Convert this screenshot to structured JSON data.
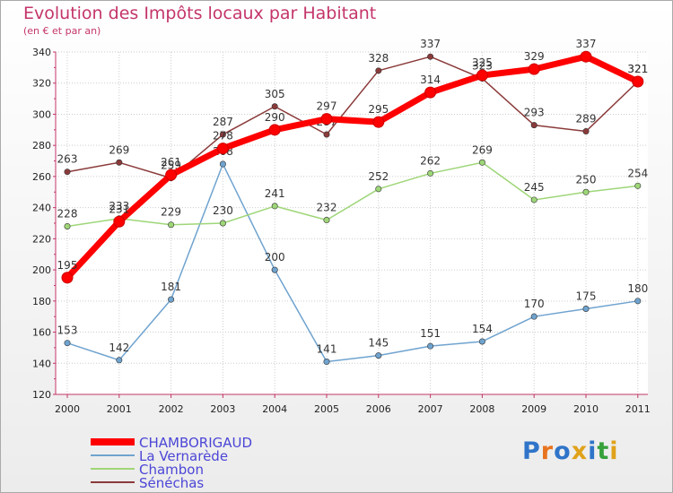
{
  "chart_data": {
    "type": "line",
    "title": "Evolution des Impôts locaux par Habitant",
    "subtitle": "(en € et par an)",
    "categories": [
      "2000",
      "2001",
      "2002",
      "2003",
      "2004",
      "2005",
      "2006",
      "2007",
      "2008",
      "2009",
      "2010",
      "2011"
    ],
    "ylim": [
      120,
      340
    ],
    "yticks": [
      120,
      140,
      160,
      180,
      200,
      220,
      240,
      260,
      280,
      300,
      320,
      340
    ],
    "grid": true,
    "legend_position": "bottom-left",
    "series": [
      {
        "name": "CHAMBORIGAUD",
        "color": "#ff0000",
        "values": [
          195,
          231,
          261,
          278,
          290,
          297,
          295,
          314,
          325,
          329,
          337,
          321
        ]
      },
      {
        "name": "La Vernarède",
        "color": "#6fa3cf",
        "values": [
          153,
          142,
          181,
          268,
          200,
          141,
          145,
          151,
          154,
          170,
          175,
          180
        ]
      },
      {
        "name": "Chambon",
        "color": "#9ed678",
        "values": [
          228,
          233,
          229,
          230,
          241,
          232,
          252,
          262,
          269,
          245,
          250,
          254
        ]
      },
      {
        "name": "Sénéchas",
        "color": "#8b3a3a",
        "values": [
          263,
          269,
          259,
          287,
          305,
          287,
          328,
          337,
          323,
          293,
          289,
          321
        ]
      }
    ]
  },
  "logo": {
    "letters": [
      "P",
      "r",
      "o",
      "x",
      "i",
      "t",
      "i"
    ],
    "colors": [
      "#2f74c9",
      "#e8731f",
      "#2f74c9",
      "#e0a21b",
      "#2f74c9",
      "#37a13b",
      "#e0a21b"
    ]
  }
}
